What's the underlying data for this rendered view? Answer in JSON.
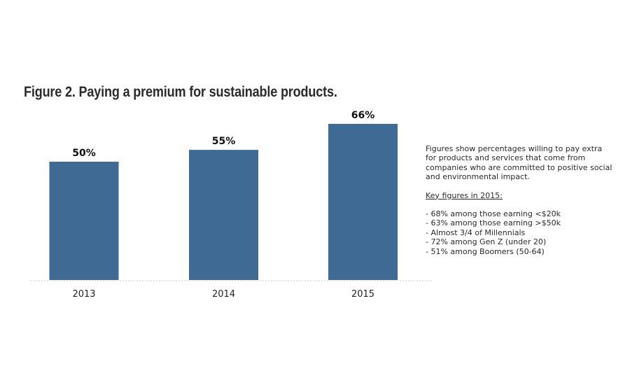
{
  "chart_data": {
    "type": "bar",
    "title": "Figure 2. Paying a premium for sustainable products.",
    "categories": [
      "2013",
      "2014",
      "2015"
    ],
    "values": [
      50,
      55,
      66
    ],
    "value_labels": [
      "50%",
      "55%",
      "66%"
    ],
    "xlabel": "",
    "ylabel": "",
    "ylim": [
      0,
      100
    ],
    "unit": "%",
    "grid": false,
    "legend": "none",
    "bar_color": "#3e6a94"
  },
  "annotation": {
    "description": "Figures show percentages willing to pay extra for products and services that come from companies who are committed to positive social and environmental impact.",
    "key_heading": "Key figures in 2015:",
    "key_items": [
      "- 68% among those earning <$20k",
      "- 63% among those earning >$50k",
      "- Almost 3/4 of Millennials",
      "- 72% among Gen Z (under 20)",
      "- 51% among Boomers (50-64)"
    ]
  }
}
